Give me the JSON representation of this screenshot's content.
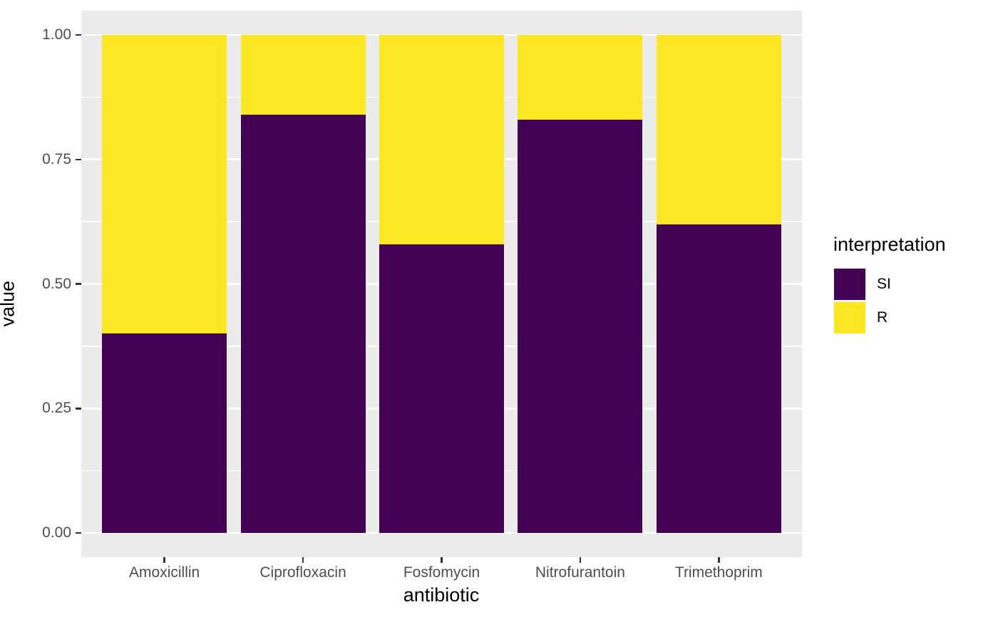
{
  "chart_data": {
    "type": "bar",
    "stacked": true,
    "orientation": "vertical",
    "title": "",
    "xlabel": "antibiotic",
    "ylabel": "value",
    "categories": [
      "Amoxicillin",
      "Ciprofloxacin",
      "Fosfomycin",
      "Nitrofurantoin",
      "Trimethoprim"
    ],
    "series": [
      {
        "name": "SI",
        "color": "#440154",
        "values": [
          0.4,
          0.84,
          0.58,
          0.83,
          0.62
        ]
      },
      {
        "name": "R",
        "color": "#FDE725",
        "values": [
          0.6,
          0.16,
          0.42,
          0.17,
          0.38
        ]
      }
    ],
    "stack_order_bottom_to_top": [
      "SI",
      "R"
    ],
    "ylim": [
      0,
      1
    ],
    "y_ticks": [
      {
        "value": 0.0,
        "label": "0.00"
      },
      {
        "value": 0.25,
        "label": "0.25"
      },
      {
        "value": 0.5,
        "label": "0.50"
      },
      {
        "value": 0.75,
        "label": "0.75"
      },
      {
        "value": 1.0,
        "label": "1.00"
      }
    ],
    "y_minor_ticks": [
      0.125,
      0.375,
      0.625,
      0.875
    ],
    "grid": true,
    "legend": {
      "title": "interpretation",
      "position": "right",
      "items": [
        {
          "label": "SI",
          "color": "#440154"
        },
        {
          "label": "R",
          "color": "#FDE725"
        }
      ]
    },
    "theme": {
      "panel_bg": "#EBEBEB",
      "grid_color": "#FFFFFF",
      "tick_color": "#333333",
      "tick_label_color": "#4D4D4D",
      "axis_title_color": "#000000",
      "background": "#FFFFFF"
    }
  }
}
